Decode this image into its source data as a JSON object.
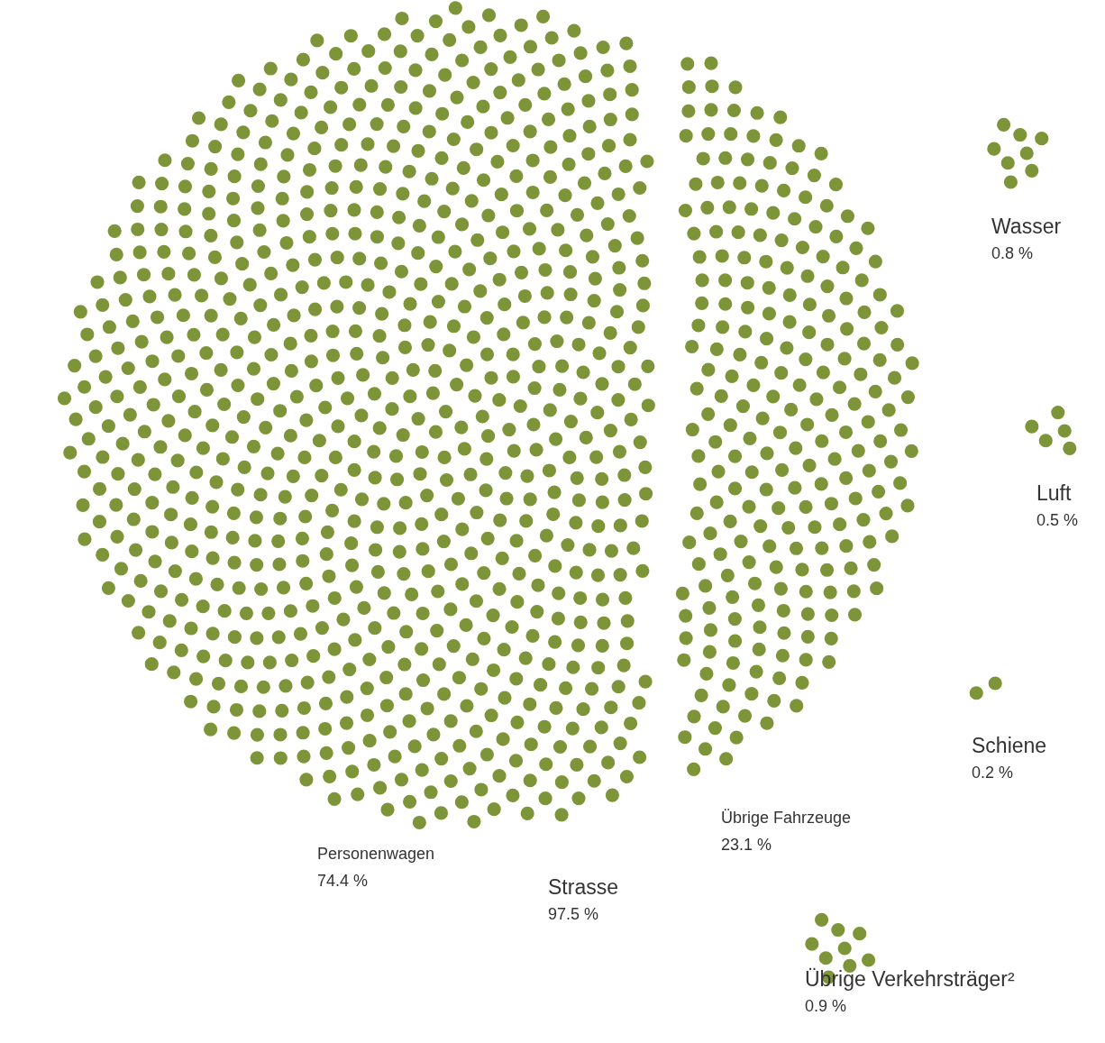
{
  "chart_data": {
    "type": "other",
    "categories": [
      "Personenwagen",
      "Übrige Fahrzeuge",
      "Wasser",
      "Luft",
      "Schiene",
      "Übrige Verkehrsträger²"
    ],
    "values": [
      74.4,
      23.1,
      0.8,
      0.5,
      0.2,
      0.9
    ],
    "value_labels": [
      "74.4 %",
      "23.1 %",
      "0.8 %",
      "0.5 %",
      "0.2 %",
      "0.9 %"
    ],
    "colors": [
      "#7d9538",
      "#7d9538",
      "#7d9538",
      "#7d9538",
      "#7d9538",
      "#7d9538"
    ],
    "annotations": [
      "Strasse",
      "97.5 %"
    ]
  }
}
